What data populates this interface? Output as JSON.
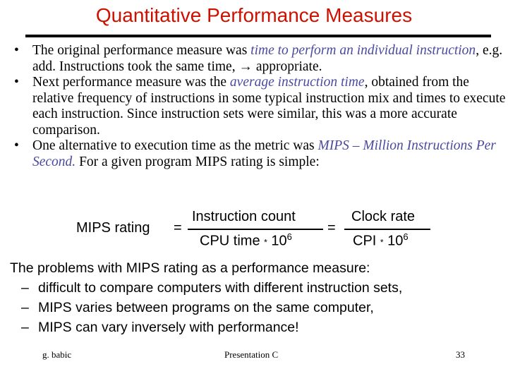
{
  "title": "Quantitative Performance Measures",
  "bullets": [
    {
      "before": "The original performance measure was ",
      "emph": "time to perform an individual instruction",
      "after": ", e.g. add. Instructions took the same time, → appropriate."
    },
    {
      "before": "Next performance measure was the ",
      "emph": "average instruction time",
      "after": ", obtained from the relative frequency of instructions in some typical instruction mix and times to execute each instruction. Since instruction sets were similar, this was a more accurate comparison."
    },
    {
      "before": "One alternative to execution time as the metric was ",
      "emph": "MIPS – Million Instructions Per Second.",
      "after": " For a given program MIPS rating is simple:"
    }
  ],
  "formula": {
    "lhs": "MIPS rating",
    "equals": "=",
    "num1": "Instruction count",
    "den1_base": "CPU time",
    "times": "*",
    "ten": "10",
    "exp": "6",
    "num2": "Clock rate",
    "den2_base": "CPI"
  },
  "problems": {
    "heading": "The problems with MIPS rating as a performance measure:",
    "dash": "–",
    "items": [
      "difficult to compare computers with different instruction sets,",
      "MIPS varies between programs on the same computer,",
      "MIPS can vary inversely with performance!"
    ]
  },
  "footer": {
    "author": "g. babic",
    "center": "Presentation C",
    "page": "33"
  }
}
